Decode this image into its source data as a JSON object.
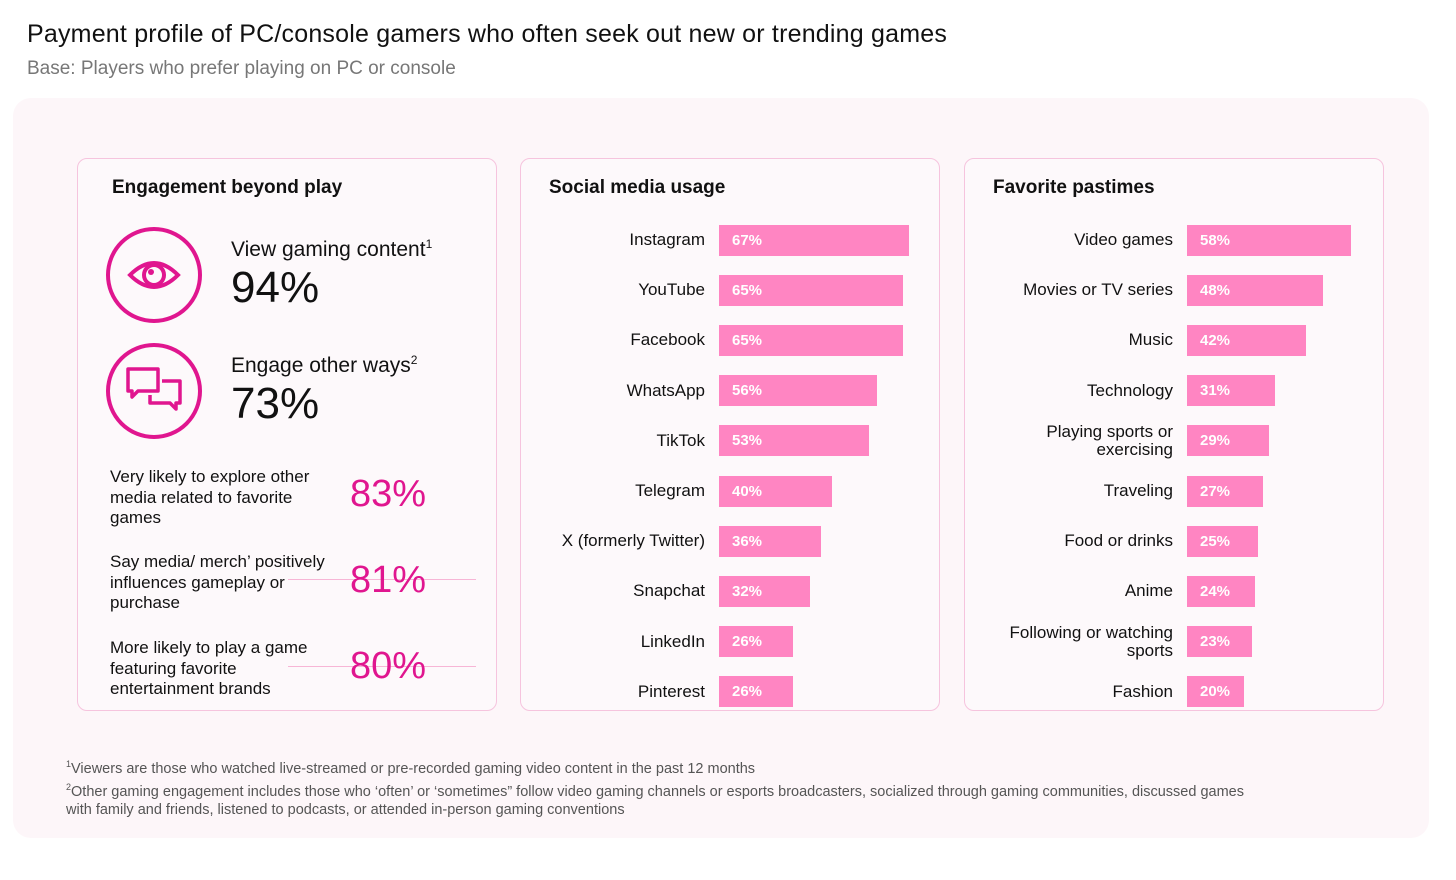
{
  "title": "Payment profile of PC/console gamers who often seek out new or trending games",
  "subtitle": "Base: Players who prefer playing on PC or console",
  "colors": {
    "accent": "#e0168f",
    "bar": "#ff85c2",
    "card_border": "#f6c4de",
    "background": "#fdf6f9"
  },
  "engagement": {
    "title": "Engagement beyond play",
    "stats": [
      {
        "icon": "eye-icon",
        "label": "View gaming content",
        "sup": "1",
        "value": "94%"
      },
      {
        "icon": "chat-bubbles-icon",
        "label": "Engage other ways",
        "sup": "2",
        "value": "73%"
      }
    ],
    "sub_stats": [
      {
        "label": "Very likely to explore other media related to favorite games",
        "value": "83%"
      },
      {
        "label": "Say media/ merch’ positively influences gameplay or purchase",
        "value": "81%"
      },
      {
        "label": "More likely to play a game featuring favorite entertainment brands",
        "value": "80%"
      }
    ]
  },
  "chart_data": [
    {
      "type": "bar",
      "orientation": "horizontal",
      "title": "Social media usage",
      "categories": [
        "Instagram",
        "YouTube",
        "Facebook",
        "WhatsApp",
        "TikTok",
        "Telegram",
        "X (formerly Twitter)",
        "Snapchat",
        "LinkedIn",
        "Pinterest"
      ],
      "values": [
        67,
        65,
        65,
        56,
        53,
        40,
        36,
        32,
        26,
        26
      ],
      "labels": [
        "67%",
        "65%",
        "65%",
        "56%",
        "53%",
        "40%",
        "36%",
        "32%",
        "26%",
        "26%"
      ],
      "unit": "%"
    },
    {
      "type": "bar",
      "orientation": "horizontal",
      "title": "Favorite pastimes",
      "categories": [
        "Video games",
        "Movies or TV series",
        "Music",
        "Technology",
        "Playing sports or exercising",
        "Traveling",
        "Food or drinks",
        "Anime",
        "Following or watching sports",
        "Fashion"
      ],
      "values": [
        58,
        48,
        42,
        31,
        29,
        27,
        25,
        24,
        23,
        20
      ],
      "labels": [
        "58%",
        "48%",
        "42%",
        "31%",
        "29%",
        "27%",
        "25%",
        "24%",
        "23%",
        "20%"
      ],
      "unit": "%"
    }
  ],
  "footnotes": [
    {
      "sup": "1",
      "text": "Viewers are those who watched live-streamed or pre-recorded gaming video content in the past 12 months"
    },
    {
      "sup": "2",
      "text": "Other gaming engagement includes those who ‘often’ or ‘sometimes” follow video gaming channels or esports broadcasters, socialized through gaming communities, discussed games with family and friends, listened to podcasts, or attended in-person gaming conventions"
    }
  ]
}
